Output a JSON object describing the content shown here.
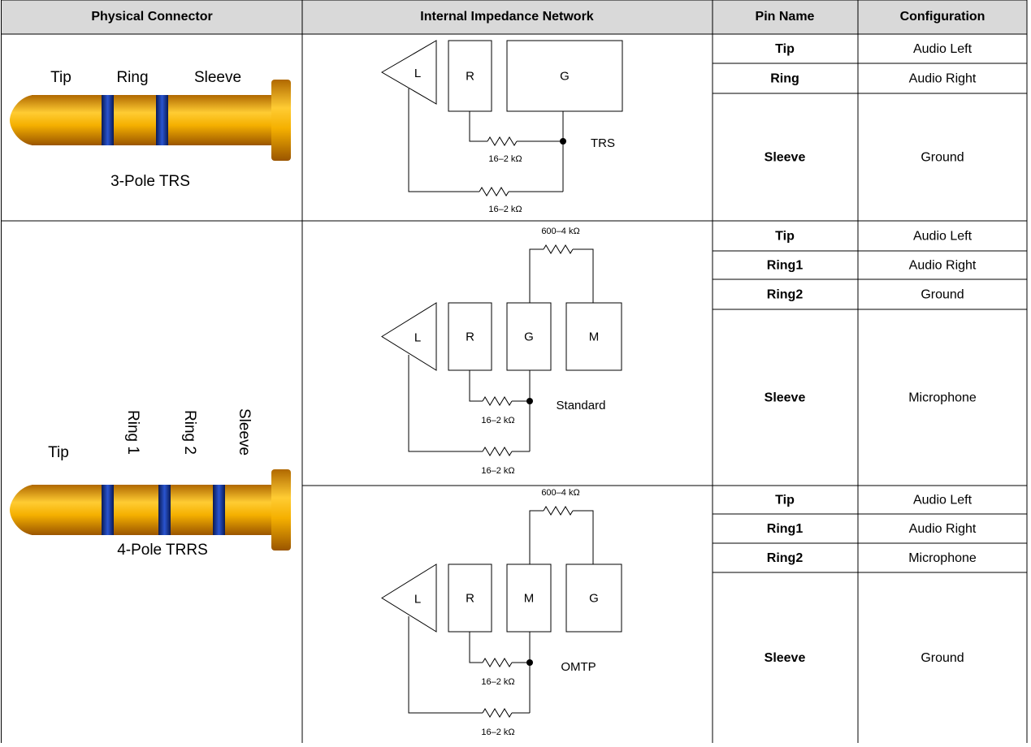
{
  "table": {
    "header": [
      "Physical Connector",
      "Internal Impedance Network",
      "Pin Name",
      "Configuration"
    ],
    "connectors": [
      {
        "labels": [
          "Tip",
          "Ring",
          "Sleeve"
        ],
        "caption": "3-Pole TRS",
        "networks": [
          {
            "boxes": [
              "L",
              "R",
              "G"
            ],
            "colors": [
              "#000000",
              "#000000",
              "#2e9e44"
            ],
            "resistors": [
              "16–2 kΩ",
              "16–2 kΩ"
            ],
            "label": "TRS",
            "pins": [
              [
                "Tip",
                "Audio Left"
              ],
              [
                "Ring",
                "Audio Right"
              ],
              [
                "Sleeve",
                "Ground"
              ]
            ]
          }
        ]
      },
      {
        "labels": [
          "Tip",
          "Ring 1",
          "Ring 2",
          "Sleeve"
        ],
        "caption": "4-Pole TRRS",
        "networks": [
          {
            "boxes": [
              "L",
              "R",
              "G",
              "M"
            ],
            "colors": [
              "#000000",
              "#000000",
              "#2e9e44",
              "#e02020"
            ],
            "resistors": [
              "600–4 kΩ",
              "16–2 kΩ",
              "16–2 kΩ"
            ],
            "label": "Standard",
            "pins": [
              [
                "Tip",
                "Audio Left"
              ],
              [
                "Ring1",
                "Audio Right"
              ],
              [
                "Ring2",
                "Ground"
              ],
              [
                "Sleeve",
                "Microphone"
              ]
            ]
          },
          {
            "boxes": [
              "L",
              "R",
              "M",
              "G"
            ],
            "colors": [
              "#000000",
              "#000000",
              "#e02020",
              "#2e9e44"
            ],
            "resistors": [
              "600–4 kΩ",
              "16–2 kΩ",
              "16–2 kΩ"
            ],
            "label": "OMTP",
            "pins": [
              [
                "Tip",
                "Audio Left"
              ],
              [
                "Ring1",
                "Audio Right"
              ],
              [
                "Ring2",
                "Microphone"
              ],
              [
                "Sleeve",
                "Ground"
              ]
            ]
          }
        ]
      }
    ]
  }
}
